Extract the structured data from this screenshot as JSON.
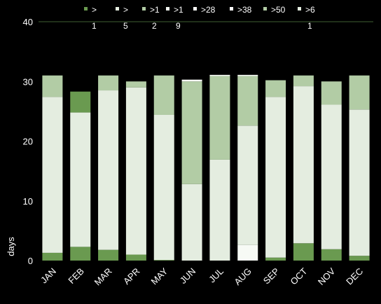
{
  "chart_data": {
    "type": "bar",
    "stacked": true,
    "categories": [
      "JAN",
      "FEB",
      "MAR",
      "APR",
      "MAY",
      "JUN",
      "JUL",
      "AUG",
      "SEP",
      "OCT",
      "NOV",
      "DEC"
    ],
    "ylabel": "days",
    "xlabel": "",
    "ylim": [
      0,
      40
    ],
    "yticks": [
      0,
      10,
      20,
      30,
      40
    ],
    "grid": false,
    "legend_position": "top",
    "legend": [
      {
        "label": ">",
        "sublabel": "1",
        "color": "#6a9a50"
      },
      {
        "label": ">",
        "sublabel": "5",
        "color": "#e4ede0"
      },
      {
        "label": ">1",
        "sublabel": "2",
        "color": "#b2cca5"
      },
      {
        "label": ">1",
        "sublabel": "9",
        "color": "#f4f8f2"
      },
      {
        "label": ">28",
        "sublabel": "",
        "color": "#fbfcfa"
      },
      {
        "label": ">38",
        "sublabel": "",
        "color": "#ffffff"
      },
      {
        "label": ">50",
        "sublabel": "",
        "color": "#b2cca5"
      },
      {
        "label": ">6",
        "sublabel": "1",
        "color": "#e4ede0"
      }
    ],
    "segment_colors": {
      "dark": "#6a9a50",
      "light": "#e4ede0",
      "mid": "#b2cca5",
      "white": "#f7faf5",
      "pure": "#ffffff"
    },
    "series": [
      {
        "color_key": "dark",
        "values": [
          1.3,
          2.3,
          1.8,
          1.0,
          0.1,
          0,
          0,
          0,
          0.5,
          2.9,
          1.9,
          0.8
        ]
      },
      {
        "color_key": "white",
        "values": [
          0,
          0,
          0,
          0,
          0,
          0,
          0,
          2.6,
          0,
          0,
          0,
          0
        ]
      },
      {
        "color_key": "light",
        "values": [
          26.1,
          22.5,
          26.7,
          28.0,
          24.3,
          12.8,
          16.9,
          20.0,
          26.9,
          26.3,
          24.2,
          24.5
        ]
      },
      {
        "color_key": "mid",
        "values": [
          3.6,
          0,
          2.5,
          1.0,
          6.6,
          17.2,
          14.0,
          8.3,
          2.8,
          1.8,
          3.9,
          5.7
        ]
      },
      {
        "color_key": "dark",
        "values": [
          0,
          3.5,
          0,
          0,
          0,
          0,
          0,
          0,
          0,
          0,
          0,
          0
        ]
      },
      {
        "color_key": "white",
        "values": [
          0,
          0,
          0,
          0,
          0,
          0.3,
          0.2,
          0.2,
          0,
          0,
          0,
          0
        ]
      },
      {
        "color_key": "light",
        "values": [
          0,
          0,
          0,
          0,
          0,
          0,
          0,
          0,
          0,
          0,
          0,
          0
        ]
      }
    ],
    "totals": [
      31,
      28.3,
      31,
      30,
      31,
      30,
      31,
      31,
      30,
      31,
      30,
      31
    ]
  }
}
